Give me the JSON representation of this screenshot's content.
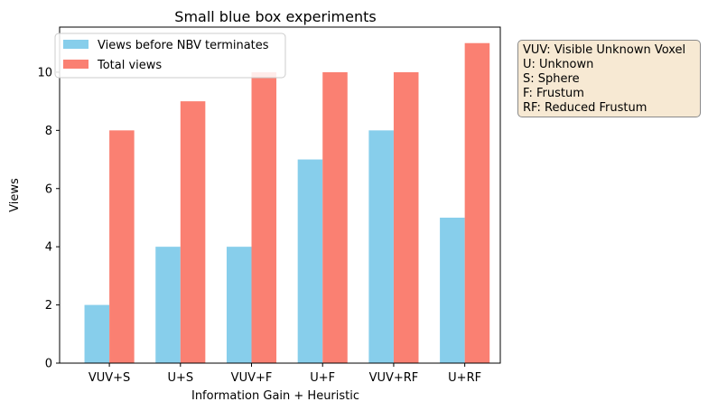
{
  "chart_data": {
    "type": "bar",
    "title": "Small blue box experiments",
    "xlabel": "Information Gain + Heuristic",
    "ylabel": "Views",
    "categories": [
      "VUV+S",
      "U+S",
      "VUV+F",
      "U+F",
      "VUV+RF",
      "U+RF"
    ],
    "series": [
      {
        "name": "Views before NBV terminates",
        "color": "#87ceeb",
        "values": [
          2,
          4,
          4,
          7,
          8,
          5
        ]
      },
      {
        "name": "Total views",
        "color": "#fa8072",
        "values": [
          8,
          9,
          10,
          10,
          10,
          11
        ]
      }
    ],
    "ylim": [
      0,
      11.55
    ],
    "yticks": [
      "0",
      "2",
      "4",
      "6",
      "8",
      "10"
    ],
    "grid": false,
    "legend": "upper-left"
  },
  "notes": {
    "lines": [
      "VUV: Visible Unknown Voxel",
      "U: Unknown",
      "S: Sphere",
      "F: Frustum",
      "RF: Reduced Frustum"
    ]
  }
}
